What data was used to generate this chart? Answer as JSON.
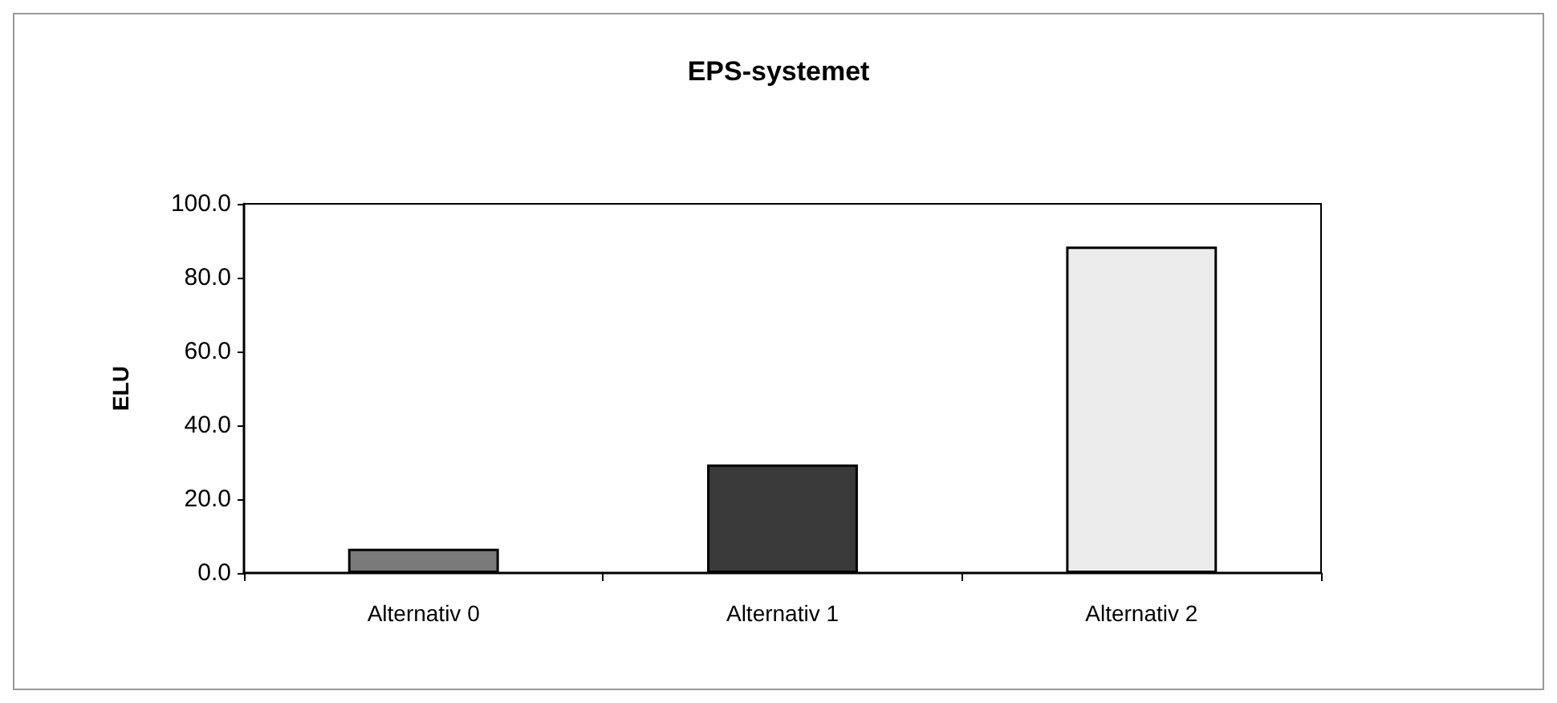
{
  "chart_data": {
    "type": "bar",
    "title": "EPS-systemet",
    "ylabel": "ELU",
    "categories": [
      "Alternativ 0",
      "Alternativ 1",
      "Alternativ 2"
    ],
    "values": [
      6.6,
      29.4,
      88.4
    ],
    "colors": [
      "#7a7a7a",
      "#3a3a3a",
      "#ececec"
    ],
    "ylim": [
      0,
      100
    ],
    "yticks": [
      {
        "value": 0,
        "label": "0.0"
      },
      {
        "value": 20,
        "label": "20.0"
      },
      {
        "value": 40,
        "label": "40.0"
      },
      {
        "value": 60,
        "label": "60.0"
      },
      {
        "value": 80,
        "label": "80.0"
      },
      {
        "value": 100,
        "label": "100.0"
      }
    ],
    "grid": false
  }
}
